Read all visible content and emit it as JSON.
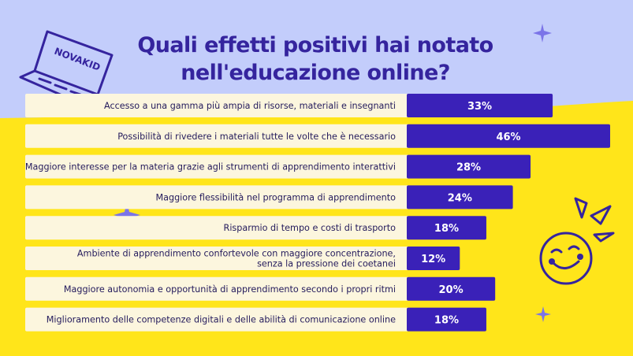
{
  "title_lines": [
    "Quali effetti positivi hai notato",
    "nell'educazione online?"
  ],
  "logo_text": "NOVAKID",
  "colors": {
    "bar": "#3a21b8",
    "label_bg": "#fcf6de",
    "title": "#35249e",
    "yellow": "#ffe51a",
    "lavender": "#c3cdfb"
  },
  "chart_data": {
    "type": "bar",
    "orientation": "horizontal",
    "title": "Quali effetti positivi hai notato nell'educazione online?",
    "xlim": [
      0,
      46
    ],
    "unit": "%",
    "grid": false,
    "categories": [
      [
        "Accesso a una gamma più ampia di risorse, materiali e insegnanti"
      ],
      [
        "Possibilità di rivedere i materiali tutte le volte che è necessario"
      ],
      [
        "Maggiore interesse per la materia grazie agli strumenti di apprendimento interattivi"
      ],
      [
        "Maggiore flessibilità nel programma di apprendimento"
      ],
      [
        "Risparmio di tempo e costi di trasporto"
      ],
      [
        "Ambiente di apprendimento confortevole con maggiore concentrazione,",
        "senza la pressione dei coetanei"
      ],
      [
        "Maggiore autonomia e opportunità di apprendimento secondo i propri ritmi"
      ],
      [
        "Miglioramento delle competenze digitali e delle abilità di comunicazione online"
      ]
    ],
    "values": [
      33,
      46,
      28,
      24,
      18,
      12,
      20,
      18
    ],
    "value_labels": [
      "33%",
      "46%",
      "28%",
      "24%",
      "18%",
      "12%",
      "20%",
      "18%"
    ]
  }
}
